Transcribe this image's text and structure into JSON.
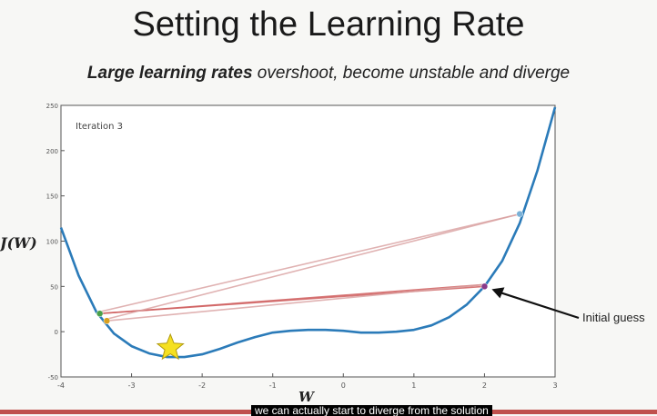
{
  "slide": {
    "title": "Setting the Learning Rate",
    "subtitle_bold": "Large learning rates",
    "subtitle_rest": " overshoot, become unstable and diverge",
    "ylabel": "J(W)",
    "xlabel": "W",
    "annotation": "Initial guess",
    "caption": "we can actually start to diverge from the solution"
  },
  "colors": {
    "curve": "#2b7bb9",
    "step_line": "#d9a0a0",
    "step_line_strong": "#d06060",
    "star": "#f5e020",
    "arrow": "#111111"
  },
  "icons": [
    "star-icon",
    "arrow-icon"
  ],
  "chart_data": {
    "type": "line",
    "inset_label": "Iteration 3",
    "xlim": [
      -4,
      3
    ],
    "ylim": [
      -50,
      250
    ],
    "x_ticks": [
      -4,
      -3,
      -2,
      -1,
      0,
      1,
      2,
      3
    ],
    "y_ticks": [
      -50,
      0,
      50,
      100,
      150,
      200,
      250
    ],
    "curve": {
      "x": [
        -4,
        -3.75,
        -3.5,
        -3.25,
        -3,
        -2.75,
        -2.5,
        -2.25,
        -2,
        -1.75,
        -1.5,
        -1.25,
        -1,
        -0.75,
        -0.5,
        -0.25,
        0,
        0.25,
        0.5,
        0.75,
        1,
        1.25,
        1.5,
        1.75,
        2,
        2.25,
        2.5,
        2.75,
        3
      ],
      "y": [
        115,
        62,
        22,
        -2,
        -16,
        -24,
        -28,
        -28,
        -25,
        -19,
        -12,
        -6,
        -1,
        1,
        2,
        2,
        1,
        -1,
        -1,
        0,
        2,
        7,
        16,
        30,
        50,
        78,
        120,
        178,
        248
      ]
    },
    "points": [
      {
        "x": 2,
        "y": 50,
        "color": "#8a3a8a"
      },
      {
        "x": -3.45,
        "y": 20,
        "color": "#4aa04a"
      },
      {
        "x": -3.35,
        "y": 12,
        "color": "#d9a020"
      },
      {
        "x": 2.5,
        "y": 130,
        "color": "#7ab0d6"
      }
    ],
    "steps": [
      {
        "from": [
          2,
          50
        ],
        "to": [
          -3.45,
          20
        ],
        "strong": true
      },
      {
        "from": [
          -3.45,
          20
        ],
        "to": [
          2,
          52
        ],
        "strong": true
      },
      {
        "from": [
          2,
          52
        ],
        "to": [
          -3.35,
          12
        ],
        "strong": false
      },
      {
        "from": [
          -3.35,
          14
        ],
        "to": [
          2.5,
          130
        ],
        "strong": false
      },
      {
        "from": [
          -3.45,
          22
        ],
        "to": [
          2.5,
          130
        ],
        "strong": false
      }
    ],
    "star": {
      "x": -2.45,
      "y": -18
    }
  }
}
